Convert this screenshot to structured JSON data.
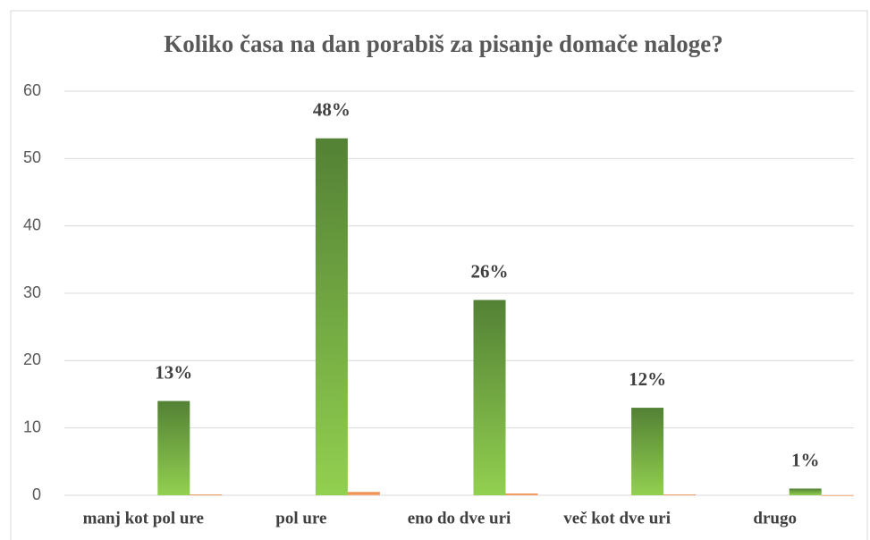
{
  "chart_data": {
    "type": "bar",
    "title": "Koliko časa na dan porabiš za pisanje domače naloge?",
    "categories": [
      "manj kot pol ure",
      "pol ure",
      "eno do dve uri",
      "več kot dve uri",
      "drugo"
    ],
    "series": [
      {
        "color": "#538135",
        "values": [
          14,
          53,
          29,
          13,
          1
        ]
      },
      {
        "color": "#f4b183",
        "values": [
          0.13,
          0.48,
          0.26,
          0.12,
          0.01
        ],
        "value_labels": [
          "13%",
          "48%",
          "26%",
          "12%",
          "1%"
        ]
      }
    ],
    "ylim": [
      0,
      60
    ],
    "yticks": [
      0,
      10,
      20,
      30,
      40,
      50,
      60
    ],
    "grid": true
  }
}
